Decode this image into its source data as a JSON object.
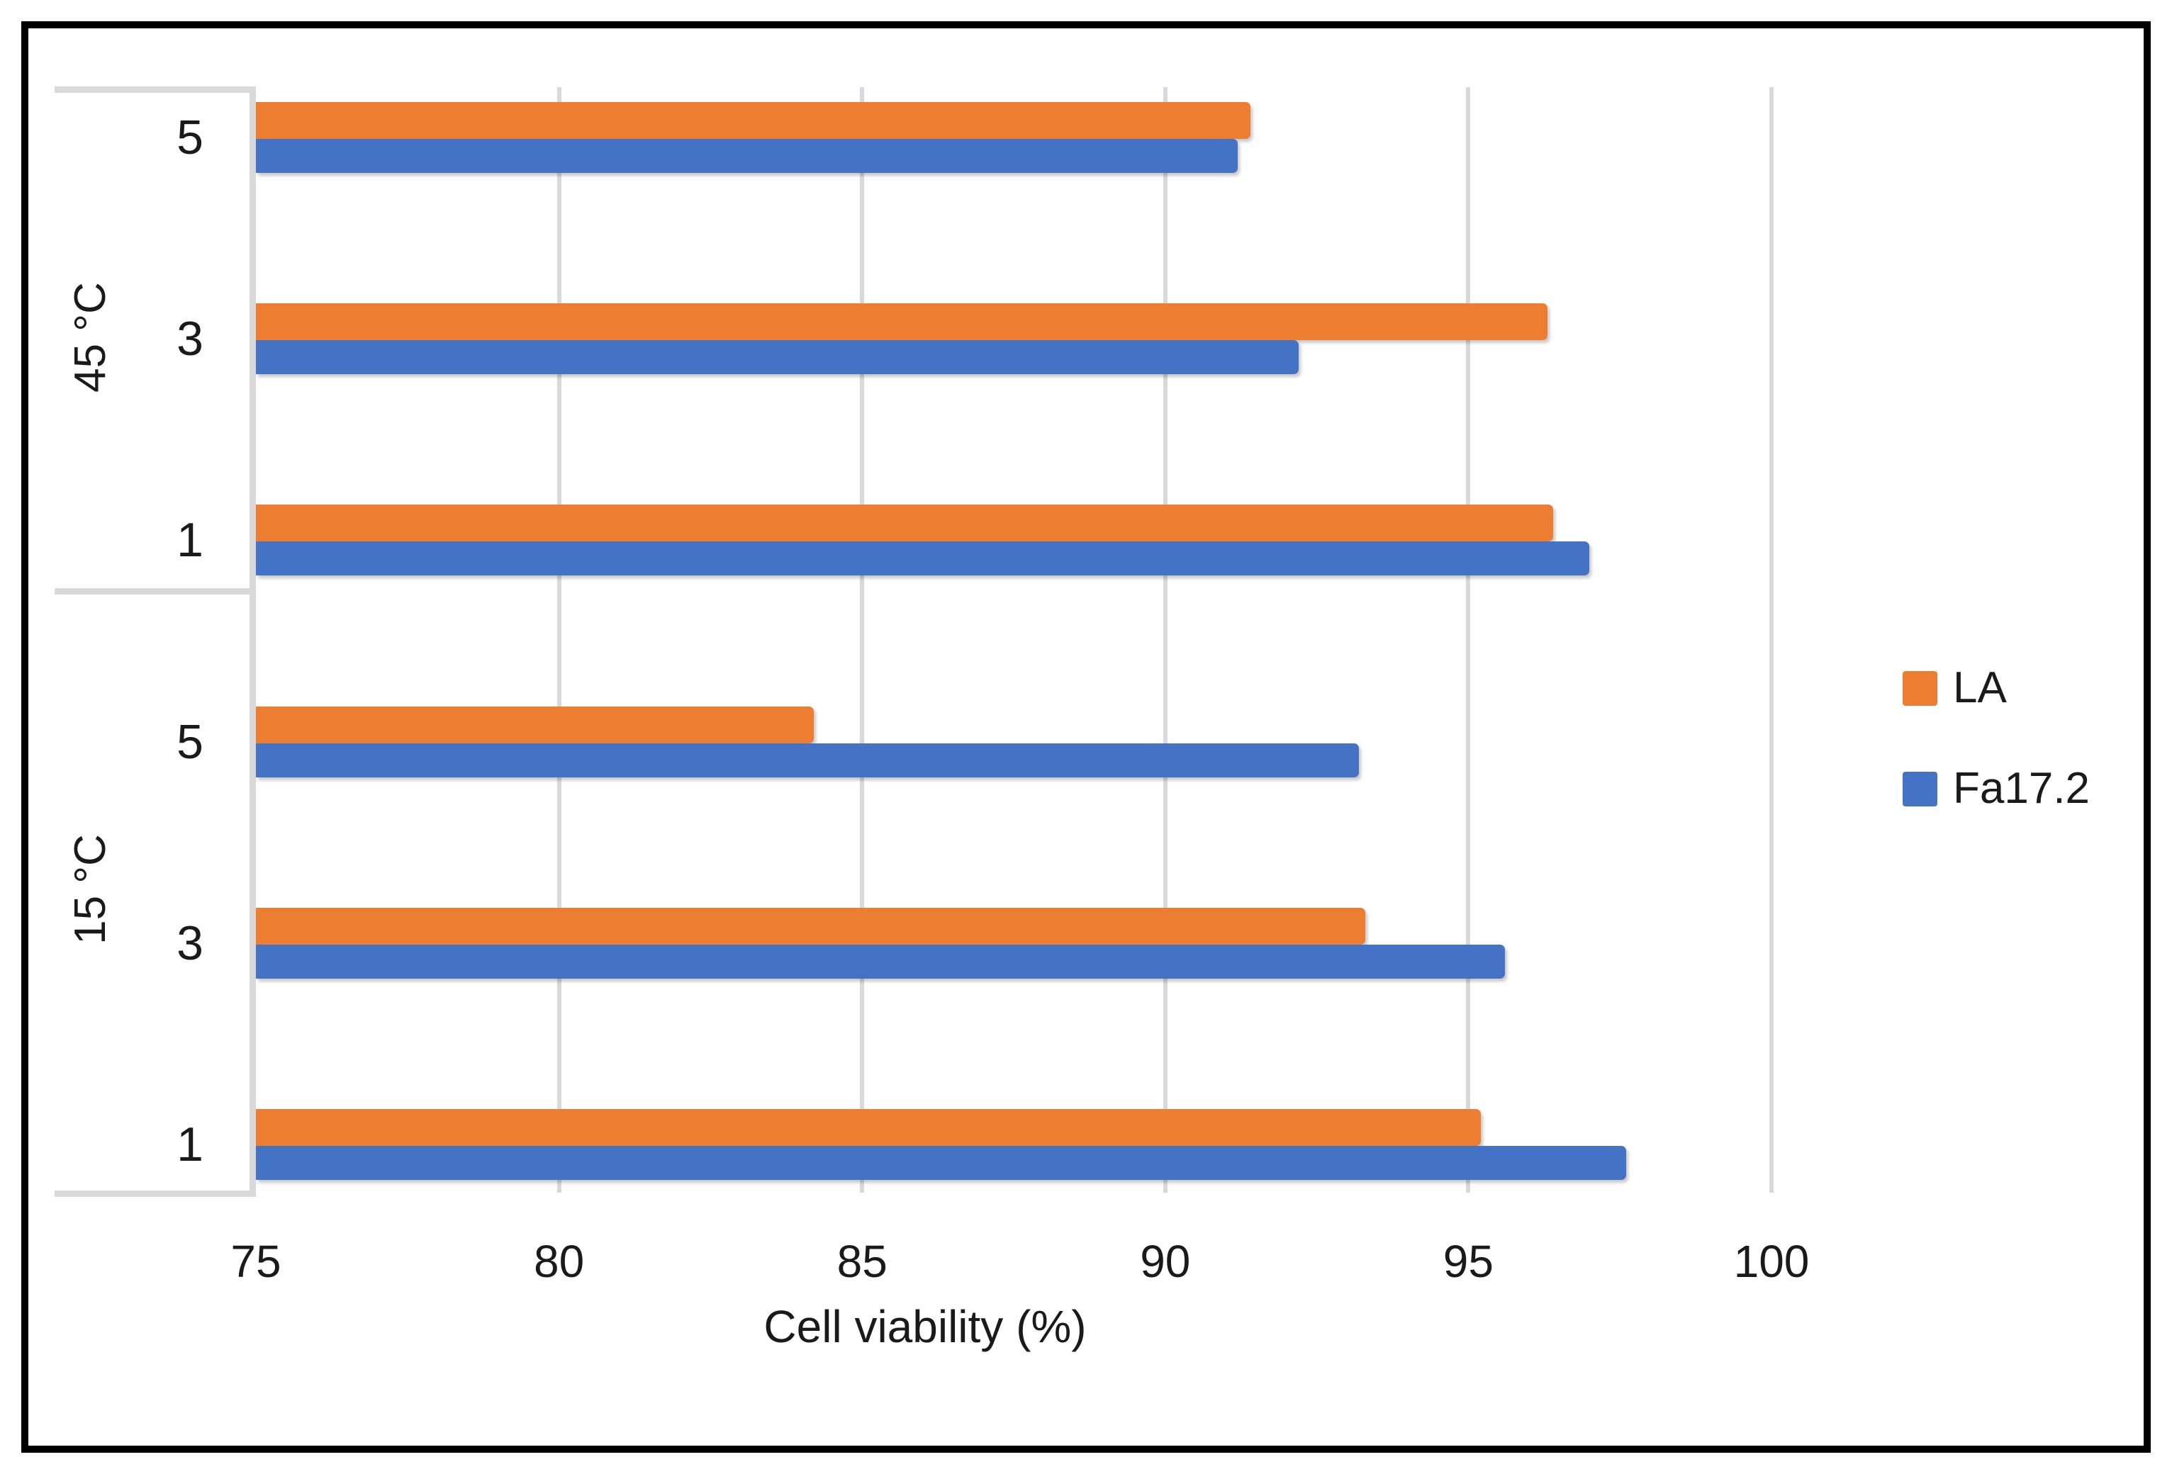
{
  "chart_data": {
    "type": "bar",
    "orientation": "horizontal",
    "title": "",
    "xlabel": "Cell viability (%)",
    "ylabel": "",
    "xlim": [
      75,
      100
    ],
    "xticks": [
      75,
      80,
      85,
      90,
      95,
      100
    ],
    "grid": true,
    "legend_position": "right",
    "groups": [
      {
        "label": "45 °C",
        "categories": [
          "5",
          "3",
          "1"
        ]
      },
      {
        "label": "15 °C",
        "categories": [
          "5",
          "3",
          "1"
        ]
      }
    ],
    "categories_top_to_bottom": [
      "5",
      "3",
      "1",
      "5",
      "3",
      "1"
    ],
    "series": [
      {
        "name": "LA",
        "color": "#ED7D31",
        "values": [
          91.4,
          96.3,
          96.4,
          84.2,
          93.3,
          95.2
        ]
      },
      {
        "name": "Fa17.2",
        "color": "#4472C4",
        "values": [
          91.2,
          92.2,
          97.0,
          93.2,
          95.6,
          97.6
        ]
      }
    ]
  },
  "colors": {
    "gridline": "#d9d9d9",
    "category_bracket": "#d9d9d9",
    "text": "#1a1a1a",
    "frame_border": "#000000",
    "background": "#ffffff"
  }
}
